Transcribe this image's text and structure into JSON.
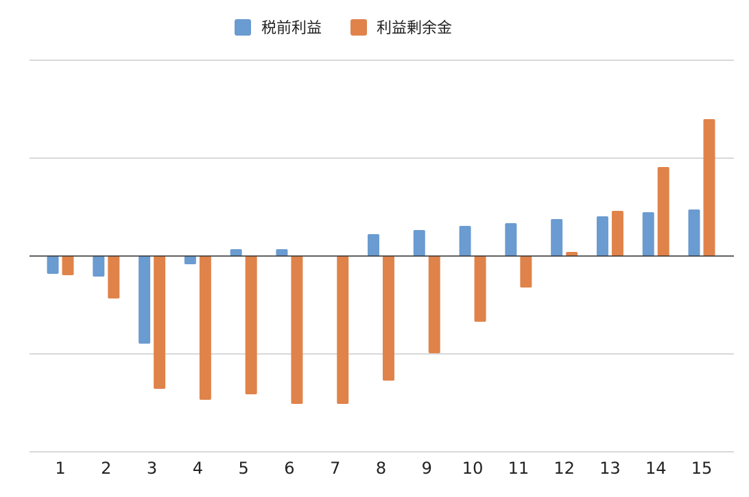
{
  "chart_data": {
    "type": "bar",
    "categories": [
      "1",
      "2",
      "3",
      "4",
      "5",
      "6",
      "7",
      "8",
      "9",
      "10",
      "11",
      "12",
      "13",
      "14",
      "15"
    ],
    "series": [
      {
        "name": "税前利益",
        "color": "#6a9bd1",
        "values": [
          -13,
          -15,
          -64,
          -6,
          5,
          5,
          0,
          16,
          19,
          22,
          24,
          27,
          29,
          32,
          34
        ]
      },
      {
        "name": "利益剰余金",
        "color": "#e0834a",
        "values": [
          -14,
          -31,
          -97,
          -105,
          -101,
          -108,
          -108,
          -91,
          -71,
          -48,
          -23,
          3,
          33,
          65,
          100
        ]
      }
    ],
    "ylim": [
      -143,
      143
    ],
    "grid": true,
    "legend_position": "top",
    "show_y_tick_labels": false
  }
}
